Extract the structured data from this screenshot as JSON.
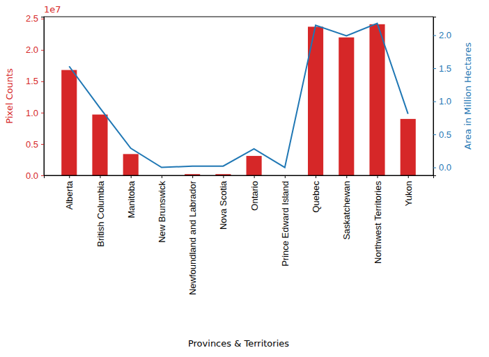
{
  "chart_data": {
    "type": "bar",
    "x_label": "Provinces & Territories",
    "y_label": "Pixel Counts",
    "y2_label": "Area in Million Hectares",
    "y_offset_label": "1e7",
    "categories": [
      "Alberta",
      "British Columbia",
      "Manitoba",
      "New Brunswick",
      "Newfoundland and Labrador",
      "Nova Scotia",
      "Ontario",
      "Prince Edward Island",
      "Quebec",
      "Saskatchewan",
      "Northwest Territories",
      "Yukon"
    ],
    "series": [
      {
        "type": "bar",
        "color": "#d62728",
        "values": [
          1.68,
          0.97,
          0.34,
          0.0,
          0.02,
          0.02,
          0.31,
          0.0,
          2.37,
          2.2,
          2.41,
          0.9
        ]
      },
      {
        "type": "line",
        "color": "#1f77b4",
        "axis": "y2",
        "values": [
          1.53,
          0.9,
          0.29,
          0.0,
          0.02,
          0.02,
          0.28,
          0.0,
          2.15,
          1.99,
          2.18,
          0.81
        ]
      }
    ],
    "ylim": [
      0,
      2.53
    ],
    "yticks": [
      {
        "value": 0,
        "label": "0.0"
      },
      0.5,
      {
        "value": 1,
        "label": "1.0"
      },
      1.5,
      {
        "value": 2,
        "label": "2.0"
      },
      2.5
    ],
    "y2lim": [
      -0.12,
      2.28
    ],
    "y2ticks": [
      {
        "value": 0,
        "label": "0.0"
      },
      0.5,
      {
        "value": 1,
        "label": "1.0"
      },
      1.5,
      {
        "value": 2,
        "label": "2.0"
      }
    ]
  }
}
